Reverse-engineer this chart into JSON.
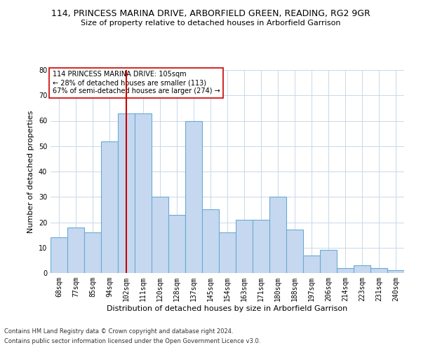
{
  "title": "114, PRINCESS MARINA DRIVE, ARBORFIELD GREEN, READING, RG2 9GR",
  "subtitle": "Size of property relative to detached houses in Arborfield Garrison",
  "xlabel": "Distribution of detached houses by size in Arborfield Garrison",
  "ylabel": "Number of detached properties",
  "categories": [
    "68sqm",
    "77sqm",
    "85sqm",
    "94sqm",
    "102sqm",
    "111sqm",
    "120sqm",
    "128sqm",
    "137sqm",
    "145sqm",
    "154sqm",
    "163sqm",
    "171sqm",
    "180sqm",
    "188sqm",
    "197sqm",
    "206sqm",
    "214sqm",
    "223sqm",
    "231sqm",
    "240sqm"
  ],
  "values": [
    14,
    18,
    16,
    52,
    63,
    63,
    30,
    23,
    60,
    25,
    16,
    21,
    21,
    30,
    17,
    7,
    9,
    2,
    3,
    2,
    1
  ],
  "bar_color": "#c5d8f0",
  "bar_edge_color": "#6aaad4",
  "vline_index": 4.5,
  "vline_color": "#cc0000",
  "annotation_line1": "114 PRINCESS MARINA DRIVE: 105sqm",
  "annotation_line2": "← 28% of detached houses are smaller (113)",
  "annotation_line3": "67% of semi-detached houses are larger (274) →",
  "annotation_box_color": "#ffffff",
  "annotation_box_edge": "#cc0000",
  "ylim": [
    0,
    80
  ],
  "yticks": [
    0,
    10,
    20,
    30,
    40,
    50,
    60,
    70,
    80
  ],
  "footer1": "Contains HM Land Registry data © Crown copyright and database right 2024.",
  "footer2": "Contains public sector information licensed under the Open Government Licence v3.0.",
  "background_color": "#ffffff",
  "grid_color": "#c8d8e8",
  "title_fontsize": 9,
  "subtitle_fontsize": 8,
  "xlabel_fontsize": 8,
  "ylabel_fontsize": 8,
  "tick_fontsize": 7,
  "annotation_fontsize": 7,
  "footer_fontsize": 6
}
